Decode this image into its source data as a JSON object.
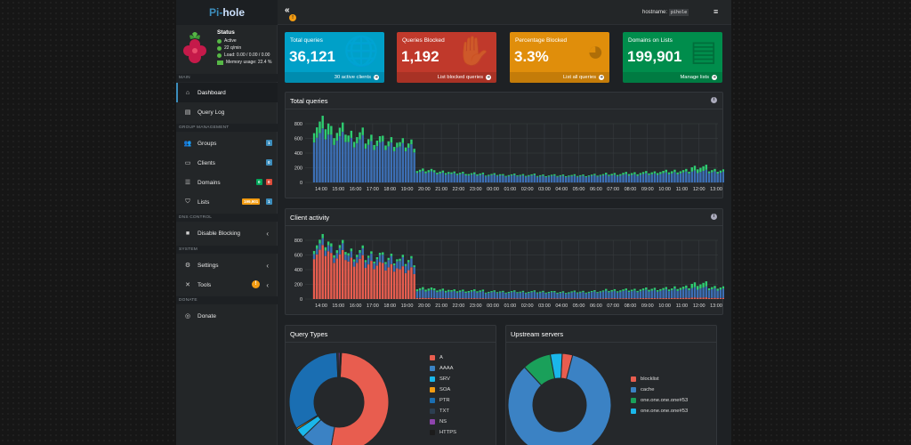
{
  "sidebar": {
    "logo_a": "Pi-",
    "logo_b": "hole",
    "status": {
      "title": "Status",
      "active": "Active",
      "rate": "22 q/min",
      "load": "Load: 0.00 / 0.00 / 0.00",
      "memory": "Memory usage: 22.4 %"
    },
    "sections": {
      "main": "MAIN",
      "group": "GROUP MANAGEMENT",
      "dns": "DNS CONTROL",
      "system": "SYSTEM",
      "donate": "DONATE"
    },
    "items": {
      "dashboard": "Dashboard",
      "querylog": "Query Log",
      "groups": "Groups",
      "clients": "Clients",
      "domains": "Domains",
      "lists": "Lists",
      "disable": "Disable Blocking",
      "settings": "Settings",
      "tools": "Tools",
      "donate": "Donate"
    },
    "badges": {
      "groups": "1",
      "clients": "0",
      "domains_a": "0",
      "domains_b": "0",
      "lists_a": "199,901",
      "lists_b": "1",
      "tools": "!"
    }
  },
  "topbar": {
    "collapse": "«",
    "notif": "!",
    "hostname_label": "hostname:",
    "hostname_value": "pihole",
    "menu": "≡"
  },
  "tiles": [
    {
      "title": "Total queries",
      "value": "36,121",
      "footer": "30 active clients",
      "color": "#00a0c8"
    },
    {
      "title": "Queries Blocked",
      "value": "1,192",
      "footer": "List blocked queries",
      "color": "#c0392b"
    },
    {
      "title": "Percentage Blocked",
      "value": "3.3%",
      "footer": "List all queries",
      "color": "#e08e0b"
    },
    {
      "title": "Domains on Lists",
      "value": "199,901",
      "footer": "Manage lists",
      "color": "#008d4c"
    }
  ],
  "panels": {
    "total": "Total queries",
    "client": "Client activity",
    "types": "Query Types",
    "upstream": "Upstream servers"
  },
  "colors": {
    "blue": "#3c6fb5",
    "green": "#2ecc71",
    "red": "#e85d4f",
    "grid": "#3a3e42",
    "axis_text": "#dcdcdc"
  },
  "chart_data": [
    {
      "type": "bar",
      "title": "Total queries",
      "categories": [
        "14:00",
        "15:00",
        "16:00",
        "17:00",
        "18:00",
        "19:00",
        "20:00",
        "21:00",
        "22:00",
        "23:00",
        "00:00",
        "01:00",
        "02:00",
        "03:00",
        "04:00",
        "05:00",
        "06:00",
        "07:00",
        "08:00",
        "09:00",
        "10:00",
        "11:00",
        "12:00",
        "13:00"
      ],
      "ylim": [
        0,
        800
      ],
      "yticks": [
        0,
        200,
        400,
        600,
        800
      ],
      "series": [
        {
          "values": [
            640,
            600,
            560,
            520,
            500,
            480,
            140,
            120,
            110,
            100,
            95,
            90,
            90,
            85,
            85,
            85,
            90,
            95,
            100,
            110,
            120,
            130,
            150,
            140
          ]
        },
        {
          "values": [
            150,
            110,
            90,
            80,
            70,
            60,
            30,
            25,
            20,
            20,
            15,
            15,
            15,
            15,
            15,
            15,
            15,
            20,
            25,
            25,
            30,
            30,
            60,
            30
          ]
        }
      ]
    },
    {
      "type": "bar",
      "title": "Client activity",
      "categories": [
        "14:00",
        "15:00",
        "16:00",
        "17:00",
        "18:00",
        "19:00",
        "20:00",
        "21:00",
        "22:00",
        "23:00",
        "00:00",
        "01:00",
        "02:00",
        "03:00",
        "04:00",
        "05:00",
        "06:00",
        "07:00",
        "08:00",
        "09:00",
        "10:00",
        "11:00",
        "12:00",
        "13:00"
      ],
      "ylim": [
        0,
        800
      ],
      "yticks": [
        0,
        200,
        400,
        600,
        800
      ],
      "series": [
        {
          "values": [
            640,
            580,
            520,
            480,
            440,
            400,
            15,
            12,
            10,
            10,
            8,
            8,
            8,
            8,
            8,
            8,
            8,
            10,
            10,
            12,
            12,
            15,
            20,
            15
          ]
        },
        {
          "values": [
            80,
            80,
            80,
            90,
            100,
            110,
            100,
            90,
            85,
            85,
            80,
            80,
            80,
            80,
            75,
            80,
            85,
            90,
            95,
            100,
            105,
            115,
            130,
            120
          ]
        },
        {
          "values": [
            50,
            40,
            35,
            30,
            30,
            30,
            30,
            25,
            20,
            20,
            15,
            15,
            15,
            15,
            15,
            15,
            15,
            20,
            20,
            25,
            25,
            30,
            60,
            30
          ]
        }
      ]
    },
    {
      "type": "pie",
      "title": "Query Types",
      "labels": [
        "A",
        "AAAA",
        "SRV",
        "SOA",
        "PTR",
        "TXT",
        "NS",
        "HTTPS"
      ],
      "colors": [
        "#e85d4f",
        "#3b82c4",
        "#1ab7ea",
        "#f39c12",
        "#1a6eb2",
        "#2c3e50",
        "#8e44ad",
        "#1c1c1c"
      ],
      "values": [
        52,
        10,
        3,
        0.5,
        33,
        0.5,
        0.5,
        0.5
      ]
    },
    {
      "type": "pie",
      "title": "Upstream servers",
      "labels": [
        "blocklist",
        "cache",
        "one.one.one.one#53",
        "one.one.one.one#53"
      ],
      "colors": [
        "#e85d4f",
        "#3b82c4",
        "#1aa05a",
        "#1ab7ea"
      ],
      "values": [
        3.3,
        84,
        9,
        3.7
      ]
    }
  ]
}
